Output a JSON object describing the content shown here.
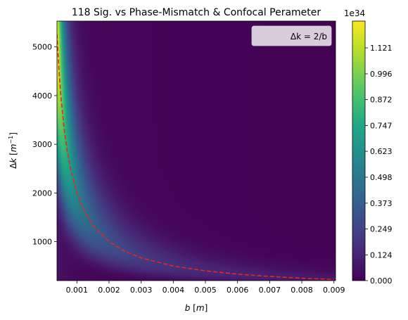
{
  "chart_data": {
    "type": "heatmap",
    "title": "118 Sig. vs Phase-Mismatch & Confocal Perameter",
    "xlabel": "b [m]",
    "ylabel": "Δk [m⁻¹]",
    "xlim": [
      0.00038,
      0.00905
    ],
    "ylim": [
      200,
      5530
    ],
    "x_ticks": [
      0.001,
      0.002,
      0.003,
      0.004,
      0.005,
      0.006,
      0.007,
      0.008,
      0.009
    ],
    "x_tick_labels": [
      "0.001",
      "0.002",
      "0.003",
      "0.004",
      "0.005",
      "0.006",
      "0.007",
      "0.008",
      "0.009"
    ],
    "y_ticks": [
      1000,
      2000,
      3000,
      4000,
      5000
    ],
    "y_tick_labels": [
      "1000",
      "2000",
      "3000",
      "4000",
      "5000"
    ],
    "colormap": "viridis",
    "colorbar": {
      "min": 0,
      "max": 1.25,
      "multiplier": "1e34",
      "ticks": [
        0.0,
        0.124,
        0.249,
        0.373,
        0.498,
        0.623,
        0.747,
        0.872,
        0.996,
        1.121
      ],
      "tick_labels": [
        "0.000",
        "0.124",
        "0.249",
        "0.373",
        "0.498",
        "0.623",
        "0.747",
        "0.872",
        "0.996",
        "1.121"
      ]
    },
    "series": [
      {
        "name": "Δk = 2/b",
        "style": "dashed",
        "color": "#e8281a",
        "x": [
          0.00038,
          0.0004,
          0.00045,
          0.0005,
          0.0006,
          0.0007,
          0.0008,
          0.001,
          0.0012,
          0.0015,
          0.002,
          0.0025,
          0.003,
          0.004,
          0.005,
          0.006,
          0.007,
          0.008,
          0.009
        ],
        "y": [
          5263,
          5000,
          4444,
          4000,
          3333,
          2857,
          2500,
          2000,
          1667,
          1333,
          1000,
          800,
          667,
          500,
          400,
          333,
          286,
          250,
          222
        ]
      }
    ],
    "legend": {
      "entries": [
        "Δk = 2/b"
      ],
      "position": "upper right"
    },
    "grid": false
  }
}
